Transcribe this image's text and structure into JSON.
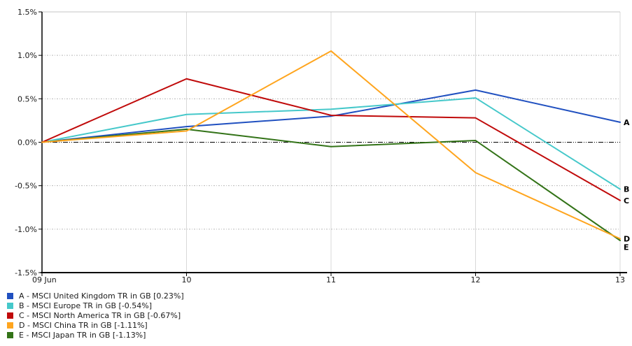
{
  "chart_data": {
    "type": "line",
    "title": "",
    "xlabel": "",
    "ylabel": "",
    "categories": [
      "09 Jun",
      "10",
      "11",
      "12",
      "13"
    ],
    "ylim": [
      -1.5,
      1.5
    ],
    "y_tick_step": 0.5,
    "y_tick_labels": [
      "1.5%",
      "1.0%",
      "0.5%",
      "0.0%",
      "-0.5%",
      "-1.0%",
      "-1.5%"
    ],
    "y_tick_values": [
      1.5,
      1.0,
      0.5,
      0.0,
      -0.5,
      -1.0,
      -1.5
    ],
    "grid": {
      "horizontal": "dotted",
      "vertical": "solid",
      "zero_line": "dash-dot",
      "gridlines_on": true
    },
    "legend_position": "bottom-left",
    "series": [
      {
        "id": "A",
        "name": "MSCI United Kingdom TR in GB",
        "final_return": "0.23%",
        "legend_label": "A - MSCI United Kingdom TR in GB [0.23%]",
        "color": "#2050C0",
        "values": [
          0.0,
          0.18,
          0.3,
          0.6,
          0.23
        ]
      },
      {
        "id": "B",
        "name": "MSCI Europe TR in GB",
        "final_return": "-0.54%",
        "legend_label": "B - MSCI Europe TR in GB [-0.54%]",
        "color": "#45C8CA",
        "values": [
          0.0,
          0.32,
          0.38,
          0.51,
          -0.54
        ]
      },
      {
        "id": "C",
        "name": "MSCI North America TR in GB",
        "final_return": "-0.67%",
        "legend_label": "C - MSCI North America TR in GB [-0.67%]",
        "color": "#C00A0A",
        "values": [
          0.0,
          0.73,
          0.31,
          0.28,
          -0.67
        ]
      },
      {
        "id": "D",
        "name": "MSCI China TR in GB",
        "final_return": "-1.11%",
        "legend_label": "D - MSCI China TR in GB [-1.11%]",
        "color": "#FFA51E",
        "values": [
          0.0,
          0.13,
          1.05,
          -0.35,
          -1.11
        ]
      },
      {
        "id": "E",
        "name": "MSCI Japan TR in GB",
        "final_return": "-1.13%",
        "legend_label": "E - MSCI Japan TR in GB [-1.13%]",
        "color": "#337318",
        "values": [
          0.0,
          0.15,
          -0.05,
          0.02,
          -1.13
        ]
      }
    ],
    "draw_order": [
      0,
      4,
      1,
      2,
      3
    ]
  },
  "colors": {
    "background": "#ffffff",
    "axis": "#000000",
    "h_grid": "#b8b8b8",
    "v_grid": "#d8d8d8",
    "top_border": "#c4c4c4",
    "tick_label": "#1a1a1a",
    "end_label": "#000000"
  }
}
